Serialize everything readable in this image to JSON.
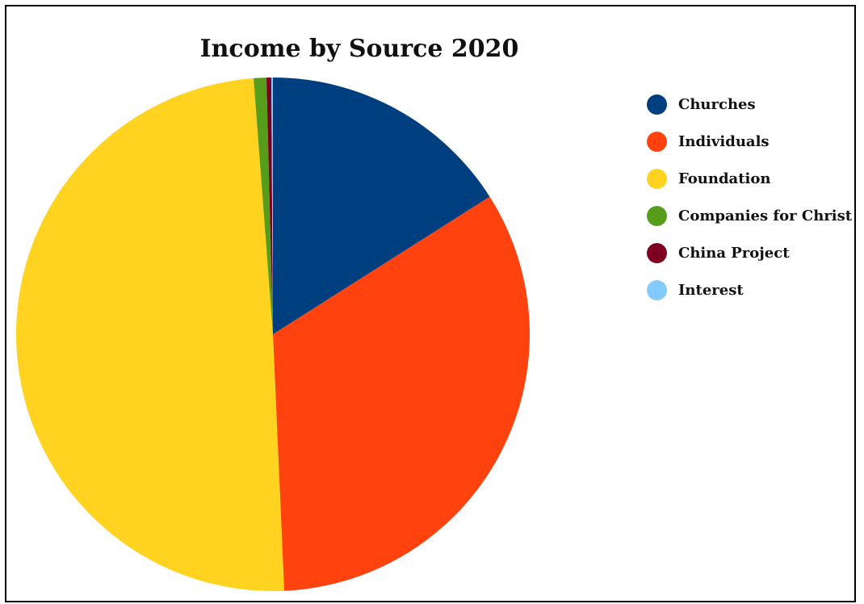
{
  "chart_data": {
    "type": "pie",
    "title": "Income by Source 2020",
    "legend_position": "top-right",
    "slices": [
      {
        "label": "Churches",
        "value": 16.0,
        "color": "#003f7f"
      },
      {
        "label": "Individuals",
        "value": 33.3,
        "color": "#ff420e"
      },
      {
        "label": "Foundation",
        "value": 49.5,
        "color": "#ffd320"
      },
      {
        "label": "Companies for Christ",
        "value": 0.8,
        "color": "#579d1c"
      },
      {
        "label": "China Project",
        "value": 0.3,
        "color": "#7e0021"
      },
      {
        "label": "Interest",
        "value": 0.1,
        "color": "#83caff"
      }
    ]
  }
}
